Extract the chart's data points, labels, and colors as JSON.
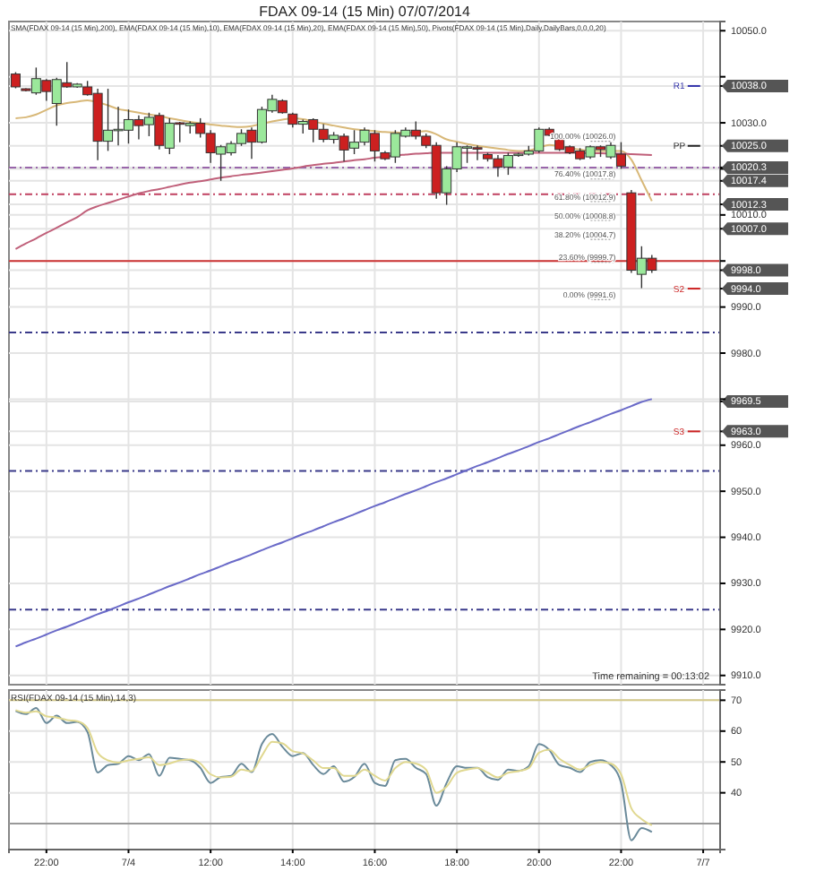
{
  "chart_data": [
    {
      "type": "candlestick",
      "title": "FDAX 09-14 (15 Min)  07/07/2014",
      "subtitle": "SMA(FDAX 09-14 (15 Min),200), EMA(FDAX 09-14 (15 Min),10), EMA(FDAX 09-14 (15 Min),20), EMA(FDAX 09-14 (15 Min),50), Pivots(FDAX 09-14 (15 Min),Daily,DailyBars,0,0,0,20)",
      "categories": [
        null,
        null,
        null,
        null,
        null,
        null,
        null,
        null,
        null,
        null,
        null,
        null,
        null,
        null,
        null,
        null,
        null,
        null,
        null,
        null,
        null,
        null,
        null,
        null,
        null,
        null,
        null,
        null,
        null,
        null,
        null,
        null,
        null,
        null,
        null,
        null,
        null,
        null,
        null,
        null,
        null,
        null,
        null,
        null,
        null,
        null,
        null,
        null,
        null,
        null,
        null,
        null,
        null,
        null,
        null,
        null,
        null,
        null,
        null,
        null,
        null,
        null,
        null,
        null,
        null,
        null,
        null,
        null,
        null
      ],
      "ohlc": [
        [
          10040.6,
          10041.0,
          10037.5,
          10037.8
        ],
        [
          10037.4,
          10037.5,
          10036.8,
          10037.0
        ],
        [
          10036.5,
          10042.0,
          10036.1,
          10039.6
        ],
        [
          10039.2,
          10039.5,
          10034.8,
          10036.8
        ],
        [
          10034.2,
          10039.8,
          10029.4,
          10039.4
        ],
        [
          10038.7,
          10043.2,
          10037.6,
          10037.8
        ],
        [
          10037.8,
          10038.6,
          10037.6,
          10038.4
        ],
        [
          10037.8,
          10039.1,
          10035.9,
          10036.1
        ],
        [
          10036.4,
          10037.4,
          10021.9,
          10026.0
        ],
        [
          10026.0,
          10037.4,
          10023.9,
          10028.4
        ],
        [
          10028.4,
          10033.5,
          10025.1,
          10028.6
        ],
        [
          10028.4,
          10032.9,
          10025.5,
          10030.7
        ],
        [
          10030.7,
          10031.6,
          10026.4,
          10029.4
        ],
        [
          10029.6,
          10032.2,
          10027.1,
          10031.2
        ],
        [
          10031.6,
          10032.2,
          10024.2,
          10025.1
        ],
        [
          10024.5,
          10031.0,
          10023.2,
          10029.9
        ],
        [
          10030.0,
          10030.2,
          10025.8,
          10029.8
        ],
        [
          10029.4,
          10030.3,
          10027.7,
          10029.9
        ],
        [
          10029.9,
          10031.0,
          10026.8,
          10027.7
        ],
        [
          10027.7,
          10028.4,
          10021.3,
          10023.5
        ],
        [
          10023.2,
          10025.2,
          10017.4,
          10024.8
        ],
        [
          10023.5,
          10026.0,
          10022.9,
          10025.5
        ],
        [
          10025.5,
          10028.6,
          10025.0,
          10027.7
        ],
        [
          10028.4,
          10029.0,
          10022.2,
          10025.8
        ],
        [
          10025.8,
          10033.5,
          10025.5,
          10032.9
        ],
        [
          10032.6,
          10036.1,
          10032.2,
          10035.1
        ],
        [
          10034.8,
          10035.1,
          10032.0,
          10032.2
        ],
        [
          10031.9,
          10032.2,
          10029.0,
          10029.7
        ],
        [
          10029.7,
          10030.7,
          10027.7,
          10030.3
        ],
        [
          10030.7,
          10031.0,
          10025.8,
          10028.6
        ],
        [
          10028.6,
          10029.7,
          10025.8,
          10026.4
        ],
        [
          10026.4,
          10028.0,
          10025.5,
          10027.3
        ],
        [
          10027.1,
          10027.7,
          10021.6,
          10024.1
        ],
        [
          10024.5,
          10028.4,
          10023.2,
          10025.8
        ],
        [
          10025.8,
          10029.0,
          10025.1,
          10028.4
        ],
        [
          10027.7,
          10028.4,
          10021.6,
          10023.9
        ],
        [
          10023.5,
          10023.9,
          10021.9,
          10022.2
        ],
        [
          10022.6,
          10028.4,
          10021.3,
          10027.7
        ],
        [
          10027.1,
          10029.0,
          10026.8,
          10028.4
        ],
        [
          10028.4,
          10030.3,
          10026.4,
          10027.1
        ],
        [
          10027.1,
          10027.7,
          10024.5,
          10025.1
        ],
        [
          10025.1,
          10025.8,
          10013.5,
          10014.8
        ],
        [
          10014.8,
          10020.6,
          10012.2,
          10020.0
        ],
        [
          10020.0,
          10025.8,
          10019.3,
          10024.8
        ],
        [
          10024.5,
          10025.1,
          10021.3,
          10024.8
        ],
        [
          10024.6,
          10025.1,
          10021.9,
          10024.5
        ],
        [
          10023.1,
          10023.5,
          10021.6,
          10022.2
        ],
        [
          10022.2,
          10023.0,
          10018.3,
          10020.4
        ],
        [
          10020.4,
          10023.5,
          10018.7,
          10022.9
        ],
        [
          10023.0,
          10023.5,
          10022.6,
          10023.2
        ],
        [
          10023.2,
          10025.0,
          10022.9,
          10023.9
        ],
        [
          10023.9,
          10029.0,
          10023.5,
          10028.6
        ],
        [
          10028.6,
          10029.0,
          10027.1,
          10027.3
        ],
        [
          10026.4,
          10027.1,
          10023.9,
          10024.2
        ],
        [
          10024.8,
          10025.1,
          10023.2,
          10023.5
        ],
        [
          10023.9,
          10024.5,
          10021.9,
          10022.2
        ],
        [
          10022.6,
          10025.1,
          10022.2,
          10024.8
        ],
        [
          10024.8,
          10025.1,
          10022.6,
          10024.2
        ],
        [
          10022.6,
          10025.8,
          10022.2,
          10025.1
        ],
        [
          10023.2,
          10025.8,
          10020.0,
          10020.6
        ],
        [
          10014.8,
          10015.4,
          9997.4,
          9998.0
        ],
        [
          9997.1,
          10003.2,
          9994.1,
          10000.6
        ],
        [
          10000.6,
          10001.3,
          9997.4,
          9998.0
        ],
        null,
        null,
        null,
        null,
        null,
        null
      ],
      "series": [
        {
          "type": "line",
          "color": "#d8b878",
          "values": [
            10031.0,
            10031.2,
            10031.8,
            10032.8,
            10033.8,
            10034.3,
            10034.6,
            10034.9,
            10034.5,
            10033.8,
            10033.0,
            10032.6,
            10032.2,
            10031.8,
            10031.5,
            10031.0,
            10030.6,
            10030.2,
            10029.9,
            10029.6,
            10029.4,
            10029.2,
            10029.1,
            10029.3,
            10029.8,
            10030.3,
            10030.7,
            10031.0,
            10030.8,
            10030.3,
            10029.8,
            10029.4,
            10029.0,
            10028.6,
            10028.4,
            10028.2,
            10028.0,
            10027.9,
            10027.8,
            10028.0,
            10028.2,
            10027.5,
            10026.4,
            10025.9,
            10025.4,
            10025.0,
            10024.7,
            10024.4,
            10024.1,
            10023.9,
            10024.0,
            10024.6,
            10025.2,
            10024.9,
            10024.5,
            10024.2,
            10023.9,
            10023.9,
            10023.9,
            10023.9,
            10022.0,
            10017.5,
            10013.0,
            null,
            null,
            null,
            null,
            null,
            null
          ]
        },
        {
          "type": "line",
          "color": "#c0607a",
          "values": [
            10002.6,
            10003.8,
            10004.9,
            10006.1,
            10007.2,
            10008.4,
            10009.5,
            10011.0,
            10011.9,
            10012.6,
            10013.3,
            10014.0,
            10014.7,
            10015.2,
            10015.6,
            10016.1,
            10016.6,
            10017.0,
            10017.3,
            10017.7,
            10018.1,
            10018.4,
            10018.7,
            10018.9,
            10019.2,
            10019.5,
            10019.8,
            10020.1,
            10020.5,
            10020.8,
            10021.1,
            10021.3,
            10021.6,
            10021.9,
            10022.1,
            10022.4,
            10022.6,
            10022.9,
            10023.1,
            10023.3,
            10023.4,
            10023.5,
            10023.5,
            10023.5,
            10023.5,
            10023.5,
            10023.5,
            10023.5,
            10023.5,
            10023.5,
            10023.5,
            10023.5,
            10023.5,
            10023.5,
            10023.5,
            10023.5,
            10023.4,
            10023.4,
            10023.3,
            10023.3,
            10023.2,
            10023.1,
            10023.0,
            null,
            null,
            null,
            null,
            null,
            null
          ]
        },
        {
          "type": "line",
          "color": "#6a6ac8",
          "values": [
            9916.3,
            9917.2,
            9918.0,
            9918.9,
            9919.8,
            9920.6,
            9921.5,
            9922.4,
            9923.3,
            9924.1,
            9925.0,
            9925.9,
            9926.7,
            9927.6,
            9928.5,
            9929.4,
            9930.2,
            9931.1,
            9932.0,
            9932.8,
            9933.7,
            9934.6,
            9935.4,
            9936.3,
            9937.2,
            9938.1,
            9938.9,
            9939.8,
            9940.7,
            9941.5,
            9942.4,
            9943.3,
            9944.1,
            9945.0,
            9945.9,
            9946.8,
            9947.6,
            9948.5,
            9949.4,
            9950.2,
            9951.1,
            9952.0,
            9952.8,
            9953.7,
            9954.6,
            9955.5,
            9956.3,
            9957.2,
            9958.1,
            9958.9,
            9959.8,
            9960.7,
            9961.5,
            9962.4,
            9963.3,
            9964.2,
            9965.0,
            9965.9,
            9966.8,
            9967.6,
            9968.5,
            9969.4,
            9970.0,
            null,
            null,
            null,
            null,
            null,
            null
          ]
        }
      ],
      "ylim": [
        9908,
        10052
      ],
      "yticks": [
        {
          "value": 9910,
          "label": "9910.0"
        },
        {
          "value": 9920,
          "label": "9920.0"
        },
        {
          "value": 9930,
          "label": "9930.0"
        },
        {
          "value": 9940,
          "label": "9940.0"
        },
        {
          "value": 9950,
          "label": "9950.0"
        },
        {
          "value": 9960,
          "label": "9960.0"
        },
        {
          "value": 9963,
          "label": "9963.0"
        },
        {
          "value": 9969.5,
          "label": "9969.5"
        },
        {
          "value": 9970,
          "label": null
        },
        {
          "value": 9980,
          "label": "9980.0"
        },
        {
          "value": 9990,
          "label": "9990.0"
        },
        {
          "value": 9994,
          "label": "9994.0"
        },
        {
          "value": 9998,
          "label": "9998.0"
        },
        {
          "value": 10000,
          "label": null
        },
        {
          "value": 10007,
          "label": "10007.0"
        },
        {
          "value": 10010,
          "label": "10010.0"
        },
        {
          "value": 10012.3,
          "label": "10012.3"
        },
        {
          "value": 10017.4,
          "label": "10017.4"
        },
        {
          "value": 10020,
          "label": null
        },
        {
          "value": 10020.3,
          "label": "10020.3"
        },
        {
          "value": 10025,
          "label": "10025.0"
        },
        {
          "value": 10030,
          "label": "10030.0"
        },
        {
          "value": 10038,
          "label": "10038.0"
        },
        {
          "value": 10040,
          "label": null
        },
        {
          "value": 10050,
          "label": "10050.0"
        }
      ],
      "ref_lines": [
        {
          "axis": "y",
          "value": 10020.3,
          "color": "#9966aa",
          "line_style": "dashed"
        },
        {
          "axis": "y",
          "value": 10014.5,
          "color": "#c04060",
          "line_style": "dashed"
        },
        {
          "axis": "y",
          "value": 10000,
          "color": "#cc3333",
          "line_style": "solid"
        },
        {
          "axis": "y",
          "value": 9984.5,
          "color": "#3a3a8a",
          "line_style": "dashed"
        },
        {
          "axis": "y",
          "value": 9954.4,
          "color": "#3a3a8a",
          "line_style": "dashed"
        },
        {
          "axis": "y",
          "value": 9924.3,
          "color": "#3a3a8a",
          "line_style": "dashed"
        },
        {
          "axis": "y",
          "value": 10038,
          "label": "R1",
          "color": "#3333aa",
          "line_style": "solid"
        },
        {
          "axis": "y",
          "value": 10025,
          "label": "PP",
          "color": "#222222",
          "line_style": "solid"
        },
        {
          "axis": "y",
          "value": 9994,
          "label": "S2",
          "color": "#cc2222",
          "line_style": "solid"
        },
        {
          "axis": "y",
          "value": 9963,
          "label": "S3",
          "color": "#cc2222",
          "line_style": "solid"
        },
        {
          "axis": "y",
          "value": 10026.0,
          "label": "100.00% (10026.0)",
          "color": "#999999",
          "line_style": "dotted"
        },
        {
          "axis": "y",
          "value": 10017.8,
          "label": "76.40% (10017.8)",
          "color": "#999999",
          "line_style": "dotted"
        },
        {
          "axis": "y",
          "value": 10012.9,
          "label": "61.80% (10012.9)",
          "color": "#999999",
          "line_style": "dotted"
        },
        {
          "axis": "y",
          "value": 10008.8,
          "label": "50.00% (10008.8)",
          "color": "#999999",
          "line_style": "dotted"
        },
        {
          "axis": "y",
          "value": 10004.7,
          "label": "38.20% (10004.7)",
          "color": "#999999",
          "line_style": "dotted"
        },
        {
          "axis": "y",
          "value": 9999.7,
          "label": "23.60% (9999.7)",
          "color": "#999999",
          "line_style": "dotted"
        },
        {
          "axis": "y",
          "value": 9991.6,
          "label": "0.00% (9991.6)",
          "color": "#999999",
          "line_style": "dotted"
        }
      ],
      "annotations": [
        "Time remaining = 00:13:02"
      ],
      "grid": true,
      "tick_labels": "y"
    },
    {
      "type": "line",
      "title": "RSI(FDAX 09-14 (15 Min),14,3)",
      "categories": [
        null,
        null,
        null,
        "22:00",
        null,
        null,
        null,
        null,
        null,
        null,
        null,
        "7/4",
        null,
        null,
        null,
        null,
        null,
        null,
        null,
        "12:00",
        null,
        null,
        null,
        null,
        null,
        null,
        null,
        "14:00",
        null,
        null,
        null,
        null,
        null,
        null,
        null,
        "16:00",
        null,
        null,
        null,
        null,
        null,
        null,
        null,
        "18:00",
        null,
        null,
        null,
        null,
        null,
        null,
        null,
        "20:00",
        null,
        null,
        null,
        null,
        null,
        null,
        null,
        "22:00",
        null,
        null,
        null,
        null,
        null,
        null,
        null,
        "7/7",
        null
      ],
      "series": [
        {
          "color": "#6a8a9a",
          "values": [
            66.5,
            65.5,
            67.5,
            62.6,
            65.0,
            62.6,
            63.0,
            59.7,
            46.6,
            49.0,
            49.4,
            51.9,
            50.6,
            52.5,
            45.5,
            51.4,
            51.0,
            50.6,
            48.1,
            43.2,
            45.1,
            45.5,
            49.4,
            46.7,
            55.8,
            59.1,
            54.9,
            51.9,
            52.9,
            49.0,
            46.1,
            48.6,
            43.6,
            45.1,
            49.4,
            43.2,
            42.2,
            50.6,
            51.0,
            48.1,
            46.1,
            35.8,
            43.2,
            48.6,
            48.1,
            48.1,
            45.1,
            44.2,
            47.5,
            47.1,
            48.6,
            55.8,
            53.9,
            49.0,
            48.1,
            46.7,
            50.0,
            50.6,
            49.0,
            43.2,
            24.6,
            28.6,
            27.3,
            null,
            null,
            null,
            null,
            null,
            null
          ]
        },
        {
          "color": "#e0d890",
          "values": [
            66.8,
            66.0,
            66.4,
            64.8,
            64.4,
            63.6,
            63.2,
            61.0,
            53.0,
            50.5,
            49.8,
            50.5,
            51.0,
            51.5,
            49.0,
            49.5,
            50.5,
            50.8,
            49.5,
            46.0,
            45.0,
            45.2,
            47.5,
            47.0,
            52.0,
            56.5,
            56.0,
            53.5,
            52.8,
            50.5,
            48.0,
            48.0,
            45.5,
            45.5,
            47.5,
            45.5,
            44.0,
            48.0,
            50.0,
            49.5,
            47.5,
            40.0,
            42.0,
            46.5,
            47.5,
            48.0,
            46.5,
            45.0,
            46.5,
            47.0,
            48.0,
            53.0,
            54.0,
            51.0,
            49.0,
            47.5,
            49.0,
            50.0,
            49.5,
            46.0,
            35.0,
            31.5,
            29.5,
            null,
            null,
            null,
            null,
            null,
            null
          ]
        }
      ],
      "ylim": [
        21.6,
        73.3
      ],
      "yticks": [
        40,
        50,
        60,
        70
      ],
      "ref_lines": [
        {
          "axis": "y",
          "value": 70,
          "color": "#d4c98a",
          "line_style": "solid"
        },
        {
          "axis": "y",
          "value": 30,
          "color": "#999999",
          "line_style": "solid"
        }
      ],
      "grid": true
    }
  ]
}
